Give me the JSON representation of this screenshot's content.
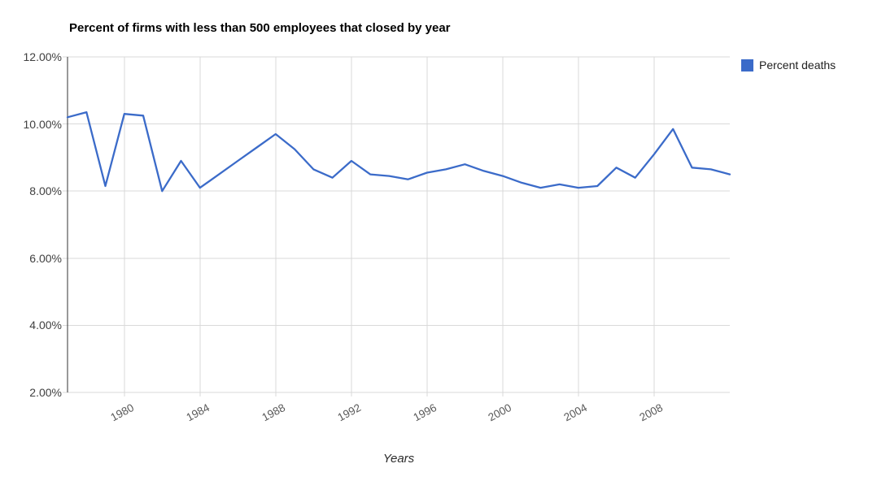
{
  "chart_data": {
    "type": "line",
    "title": "Percent of firms with less than 500 employees that closed by year",
    "xlabel": "Years",
    "ylabel": "",
    "legend_position": "right",
    "grid": true,
    "ylim": [
      2,
      12
    ],
    "y_ticks": [
      2,
      4,
      6,
      8,
      10,
      12
    ],
    "y_tick_labels": [
      "12.00%",
      "10.00%",
      "8.00%",
      "6.00%",
      "4.00%",
      "2.00%"
    ],
    "x_tick_years": [
      1980,
      1984,
      1988,
      1992,
      1996,
      2000,
      2004,
      2008
    ],
    "x_tick_labels": [
      "1980",
      "1984",
      "1988",
      "1992",
      "1996",
      "2000",
      "2004",
      "2008"
    ],
    "x": [
      1977,
      1978,
      1979,
      1980,
      1981,
      1982,
      1983,
      1984,
      1985,
      1986,
      1987,
      1988,
      1989,
      1990,
      1991,
      1992,
      1993,
      1994,
      1995,
      1996,
      1997,
      1998,
      1999,
      2000,
      2001,
      2002,
      2003,
      2004,
      2005,
      2006,
      2007,
      2008,
      2009,
      2010,
      2011,
      2012
    ],
    "series": [
      {
        "name": "Percent deaths",
        "values": [
          10.2,
          10.35,
          8.15,
          10.3,
          10.25,
          8.0,
          8.9,
          8.1,
          8.5,
          8.9,
          9.3,
          9.7,
          9.25,
          8.65,
          8.4,
          8.9,
          8.5,
          8.45,
          8.35,
          8.55,
          8.65,
          8.8,
          8.6,
          8.45,
          8.25,
          8.1,
          8.2,
          8.1,
          8.15,
          8.7,
          8.4,
          9.1,
          9.85,
          8.7,
          8.65,
          8.5
        ]
      }
    ],
    "series_color": "#3b6bc9",
    "gridline_color": "#d9d9d9",
    "axis_color": "#333333"
  },
  "legend": {
    "label": "Percent deaths"
  }
}
